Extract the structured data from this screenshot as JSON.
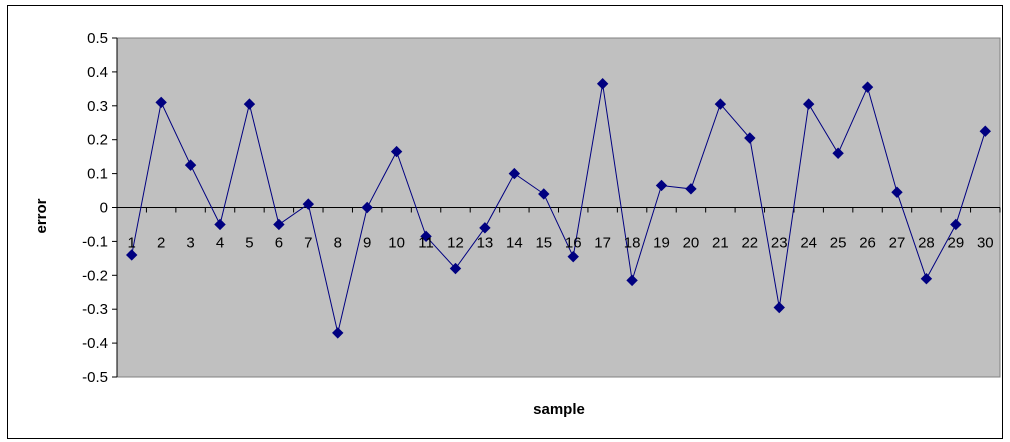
{
  "chart_data": {
    "type": "line",
    "title": "",
    "xlabel": "sample",
    "ylabel": "error",
    "ylim": [
      -0.5,
      0.5
    ],
    "yticks": [
      "0.5",
      "0.4",
      "0.3",
      "0.2",
      "0.1",
      "0",
      "-0.1",
      "-0.2",
      "-0.3",
      "-0.4",
      "-0.5"
    ],
    "ytick_values": [
      0.5,
      0.4,
      0.3,
      0.2,
      0.1,
      0,
      -0.1,
      -0.2,
      -0.3,
      -0.4,
      -0.5
    ],
    "categories": [
      "1",
      "2",
      "3",
      "4",
      "5",
      "6",
      "7",
      "8",
      "9",
      "10",
      "11",
      "12",
      "13",
      "14",
      "15",
      "16",
      "17",
      "18",
      "19",
      "20",
      "21",
      "22",
      "23",
      "24",
      "25",
      "26",
      "27",
      "28",
      "29",
      "30"
    ],
    "values": [
      -0.14,
      0.31,
      0.125,
      -0.05,
      0.305,
      -0.05,
      0.01,
      -0.37,
      0.0,
      0.165,
      -0.085,
      -0.18,
      -0.06,
      0.1,
      0.04,
      -0.145,
      0.365,
      -0.215,
      0.065,
      0.055,
      0.305,
      0.205,
      -0.295,
      0.305,
      0.16,
      0.355,
      0.045,
      -0.21,
      -0.05,
      0.225
    ],
    "grid": false,
    "legend": "none",
    "colors": {
      "plot_background": "#c0c0c0",
      "line": "#000080",
      "marker": "#000080",
      "axis": "#000000"
    },
    "marker": "diamond"
  }
}
